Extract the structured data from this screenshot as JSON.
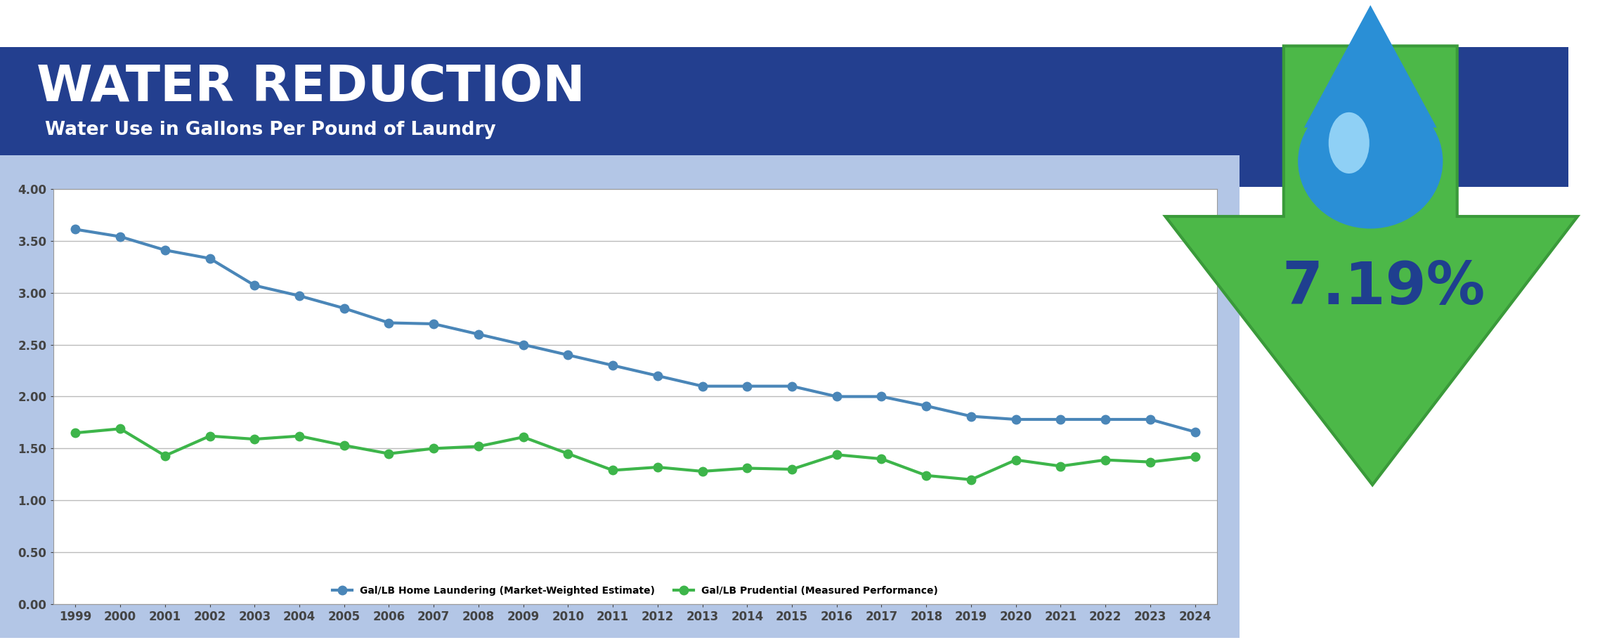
{
  "chart_data": {
    "type": "line",
    "title": "WATER REDUCTION",
    "subtitle": "Water Use in Gallons Per Pound of Laundry",
    "annotation": "7.19%",
    "categories": [
      "1999",
      "2000",
      "2001",
      "2002",
      "2003",
      "2004",
      "2005",
      "2006",
      "2007",
      "2008",
      "2009",
      "2010",
      "2011",
      "2012",
      "2013",
      "2014",
      "2015",
      "2016",
      "2017",
      "2018",
      "2019",
      "2020",
      "2021",
      "2022",
      "2023",
      "2024"
    ],
    "series": [
      {
        "name": "Gal/LB Home Laundering (Market-Weighted Estimate)",
        "color": "#4a86b8",
        "marker": "o",
        "line_style": "solid",
        "values": [
          3.61,
          3.54,
          3.41,
          3.33,
          3.07,
          2.97,
          2.85,
          2.71,
          2.7,
          2.6,
          2.5,
          2.4,
          2.3,
          2.2,
          2.1,
          2.1,
          2.1,
          2.0,
          2.0,
          1.91,
          1.81,
          1.78,
          1.78,
          1.78,
          1.78,
          1.66
        ]
      },
      {
        "name": "Gal/LB Prudential (Measured Performance)",
        "color": "#3db54a",
        "marker": "o",
        "line_style": "solid",
        "values": [
          1.65,
          1.69,
          1.43,
          1.62,
          1.59,
          1.62,
          1.53,
          1.45,
          1.5,
          1.52,
          1.61,
          1.45,
          1.29,
          1.32,
          1.28,
          1.31,
          1.3,
          1.44,
          1.4,
          1.24,
          1.2,
          1.39,
          1.33,
          1.39,
          1.37,
          1.42
        ]
      }
    ],
    "ylim": [
      0,
      4
    ],
    "yticks": [
      {
        "value": 0,
        "label": "0.00"
      },
      {
        "value": 0.5,
        "label": "0.50"
      },
      {
        "value": 1,
        "label": "1.00"
      },
      {
        "value": 1.5,
        "label": "1.50"
      },
      {
        "value": 2,
        "label": "2.00"
      },
      {
        "value": 2.5,
        "label": "2.50"
      },
      {
        "value": 3,
        "label": "3.00"
      },
      {
        "value": 3.5,
        "label": "3.50"
      },
      {
        "value": 4,
        "label": "4.00"
      }
    ],
    "grid": true,
    "legend": "lower center"
  }
}
